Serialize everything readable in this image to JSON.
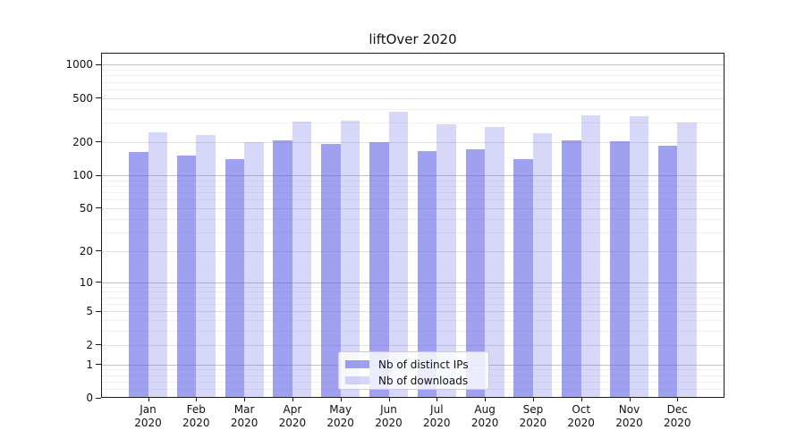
{
  "title": "liftOver 2020",
  "chart_data": {
    "type": "bar",
    "title": "liftOver 2020",
    "categories": [
      "Jan",
      "Feb",
      "Mar",
      "Apr",
      "May",
      "Jun",
      "Jul",
      "Aug",
      "Sep",
      "Oct",
      "Nov",
      "Dec"
    ],
    "category_year": "2020",
    "series": [
      {
        "name": "Nb of distinct IPs",
        "color": "rgba(102,102,230,0.62)",
        "values": [
          162,
          151,
          141,
          207,
          194,
          200,
          166,
          171,
          140,
          207,
          204,
          184
        ]
      },
      {
        "name": "Nb of downloads",
        "color": "rgba(102,102,230,0.26)",
        "values": [
          246,
          233,
          200,
          309,
          314,
          375,
          289,
          276,
          239,
          346,
          343,
          302
        ]
      }
    ],
    "y_axis": {
      "scale": "log1p",
      "tick_labels": [
        "0",
        "1",
        "2",
        "5",
        "10",
        "20",
        "50",
        "100",
        "200",
        "500",
        "1000"
      ],
      "ticks": [
        0,
        1,
        2,
        5,
        10,
        20,
        50,
        100,
        200,
        500,
        1000
      ],
      "max": 1280
    },
    "grid": {
      "major": [
        1,
        10,
        100,
        1000
      ],
      "mid": [
        2,
        5,
        20,
        50,
        200,
        500
      ],
      "minor": [
        0.2,
        0.4,
        0.6,
        0.8,
        3,
        4,
        6,
        7,
        8,
        9,
        30,
        40,
        60,
        70,
        80,
        90,
        300,
        400,
        600,
        700,
        800,
        900
      ],
      "major_color": "#c3c3c3",
      "mid_color": "#e1e1e1",
      "minor_color": "#f1f1f1"
    },
    "legend": {
      "position": "lower-center",
      "entries": [
        "Nb of distinct IPs",
        "Nb of downloads"
      ]
    }
  }
}
